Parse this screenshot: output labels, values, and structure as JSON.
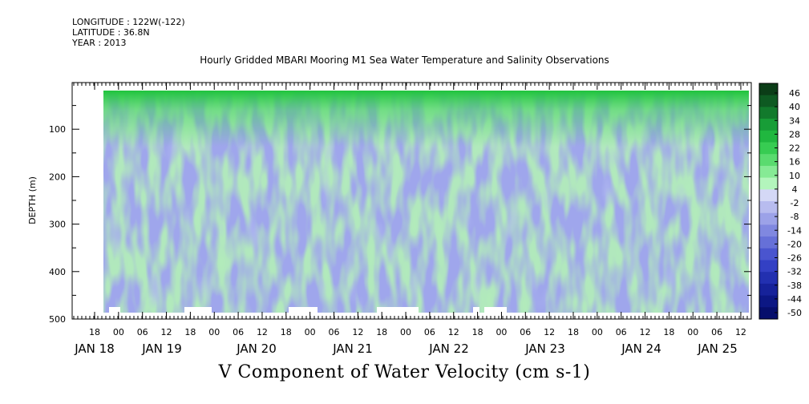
{
  "header": {
    "longitude": "LONGITUDE : 122W(-122)",
    "latitude": "LATITUDE : 36.8N",
    "year": "YEAR : 2013"
  },
  "title": "Hourly Gridded MBARI Mooring M1 Sea Water Temperature and Salinity Observations",
  "caption": "V Component of Water Velocity (cm s-1)",
  "chart_data": {
    "type": "heatmap",
    "title": "Hourly Gridded MBARI Mooring M1 Sea Water Temperature and Salinity Observations",
    "colorbar_title": "V Component of Water Velocity (cm s-1)",
    "ylabel": "DEPTH (m)",
    "ylim": [
      500,
      0
    ],
    "y_ticks": [
      100,
      200,
      300,
      400,
      500
    ],
    "x_hour_ticks": [
      "18",
      "00",
      "06",
      "12",
      "18",
      "00",
      "06",
      "12",
      "18",
      "00",
      "06",
      "12",
      "18",
      "00",
      "06",
      "12",
      "18",
      "00",
      "06",
      "12",
      "18",
      "00",
      "06",
      "12",
      "18",
      "00",
      "06",
      "12"
    ],
    "x_date_labels": [
      "JAN 18",
      "JAN 19",
      "JAN 20",
      "JAN 21",
      "JAN 22",
      "JAN 23",
      "JAN 24",
      "JAN 25"
    ],
    "colorbar_levels": [
      "46",
      "40",
      "34",
      "28",
      "22",
      "16",
      "10",
      "4",
      "-2",
      "-8",
      "-14",
      "-20",
      "-26",
      "-32",
      "-38",
      "-44",
      "-50"
    ],
    "colors": {
      "strong_positive": "#0a5a1e",
      "positive": "#1fbf35",
      "weak_positive": "#a6f0a6",
      "near_zero": "#e6e8f8",
      "weak_negative": "#a6aaea",
      "negative": "#3c4ad8",
      "strong_negative": "#060a78"
    },
    "colorbar": [
      "#0b3d17",
      "#0e5a22",
      "#127a2c",
      "#189d37",
      "#20b73f",
      "#37cc52",
      "#5adb6f",
      "#86ea95",
      "#b3f5bc",
      "#d4d8f6",
      "#b8bcef",
      "#9ca2e8",
      "#8088e0",
      "#6670d8",
      "#4a55cf",
      "#3340c4",
      "#2230b0",
      "#16229a",
      "#0c1784",
      "#060e6c"
    ],
    "data_range_hours": [
      12,
      204
    ],
    "depth_range_m": [
      20,
      480
    ]
  }
}
